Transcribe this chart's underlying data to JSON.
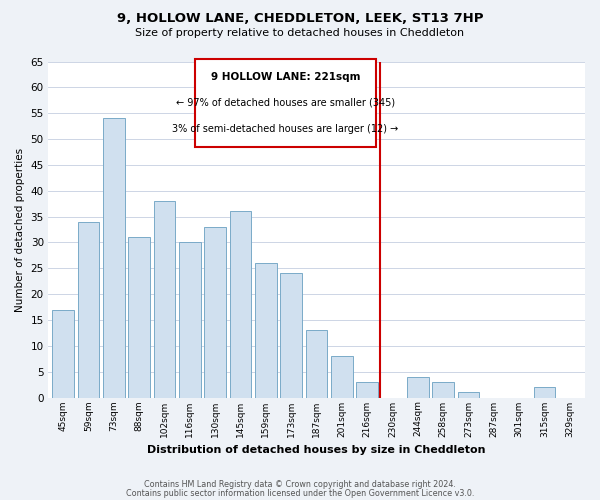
{
  "title": "9, HOLLOW LANE, CHEDDLETON, LEEK, ST13 7HP",
  "subtitle": "Size of property relative to detached houses in Cheddleton",
  "xlabel": "Distribution of detached houses by size in Cheddleton",
  "ylabel": "Number of detached properties",
  "categories": [
    "45sqm",
    "59sqm",
    "73sqm",
    "88sqm",
    "102sqm",
    "116sqm",
    "130sqm",
    "145sqm",
    "159sqm",
    "173sqm",
    "187sqm",
    "201sqm",
    "216sqm",
    "230sqm",
    "244sqm",
    "258sqm",
    "273sqm",
    "287sqm",
    "301sqm",
    "315sqm",
    "329sqm"
  ],
  "values": [
    17,
    34,
    54,
    31,
    38,
    30,
    33,
    36,
    26,
    24,
    13,
    8,
    3,
    0,
    4,
    3,
    1,
    0,
    0,
    2,
    0
  ],
  "bar_color": "#d0e0ef",
  "bar_edge_color": "#7aaac8",
  "vline_color": "#cc0000",
  "annotation_title": "9 HOLLOW LANE: 221sqm",
  "annotation_line1": "← 97% of detached houses are smaller (345)",
  "annotation_line2": "3% of semi-detached houses are larger (12) →",
  "annotation_box_color": "#ffffff",
  "annotation_box_edge": "#cc0000",
  "ylim": [
    0,
    65
  ],
  "yticks": [
    0,
    5,
    10,
    15,
    20,
    25,
    30,
    35,
    40,
    45,
    50,
    55,
    60,
    65
  ],
  "footer1": "Contains HM Land Registry data © Crown copyright and database right 2024.",
  "footer2": "Contains public sector information licensed under the Open Government Licence v3.0.",
  "bg_color": "#eef2f7",
  "plot_bg_color": "#ffffff",
  "grid_color": "#c5cfe0"
}
